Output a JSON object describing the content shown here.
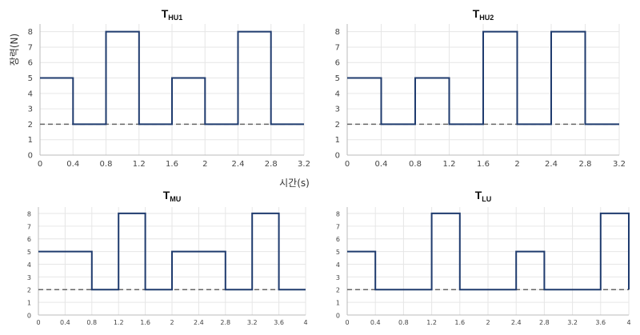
{
  "labels": {
    "y_axis": "장력(N)",
    "x_axis": "시간(s)"
  },
  "chart_data": [
    {
      "type": "line",
      "title_main": "T",
      "title_sub": "HU1",
      "x_ticks": [
        "0",
        "0.4",
        "0.8",
        "1.2",
        "1.6",
        "2",
        "2.4",
        "2.8",
        "3.2"
      ],
      "y_ticks": [
        "0",
        "1",
        "2",
        "3",
        "4",
        "5",
        "6",
        "7",
        "8"
      ],
      "xlim": [
        0,
        3.2
      ],
      "ylim": [
        0,
        8.5
      ],
      "baseline": 2,
      "step_line": {
        "x": [
          0,
          0.4,
          0.4,
          0.8,
          0.8,
          1.2,
          1.2,
          1.6,
          1.6,
          2.0,
          2.0,
          2.4,
          2.4,
          2.8,
          2.8,
          3.2
        ],
        "y": [
          5,
          5,
          2,
          2,
          8,
          8,
          2,
          2,
          5,
          5,
          2,
          2,
          8,
          8,
          2,
          2
        ]
      },
      "grid": true
    },
    {
      "type": "line",
      "title_main": "T",
      "title_sub": "HU2",
      "x_ticks": [
        "0",
        "0.4",
        "0.8",
        "1.2",
        "1.6",
        "2",
        "2.4",
        "2.8",
        "3.2"
      ],
      "y_ticks": [
        "0",
        "1",
        "2",
        "3",
        "4",
        "5",
        "6",
        "7",
        "8"
      ],
      "xlim": [
        0,
        3.2
      ],
      "ylim": [
        0,
        8.5
      ],
      "baseline": 2,
      "step_line": {
        "x": [
          0,
          0.4,
          0.4,
          0.8,
          0.8,
          1.2,
          1.2,
          1.6,
          1.6,
          2.0,
          2.0,
          2.4,
          2.4,
          2.8,
          2.8,
          3.2
        ],
        "y": [
          5,
          5,
          2,
          2,
          5,
          5,
          2,
          2,
          8,
          8,
          2,
          2,
          8,
          8,
          2,
          2
        ]
      },
      "grid": true
    },
    {
      "type": "line",
      "title_main": "T",
      "title_sub": "MU",
      "x_ticks": [
        "0",
        "0.4",
        "0.8",
        "1.2",
        "1.6",
        "2",
        "2.4",
        "2.8",
        "3.2",
        "3.6",
        "4"
      ],
      "y_ticks": [
        "0",
        "1",
        "2",
        "3",
        "4",
        "5",
        "6",
        "7",
        "8"
      ],
      "xlim": [
        0,
        4
      ],
      "ylim": [
        0,
        8.5
      ],
      "baseline": 2,
      "step_line": {
        "x": [
          0,
          0.8,
          0.8,
          1.2,
          1.2,
          1.6,
          1.6,
          2.0,
          2.0,
          2.8,
          2.8,
          3.2,
          3.2,
          3.6,
          3.6,
          4.0
        ],
        "y": [
          5,
          5,
          2,
          2,
          8,
          8,
          2,
          2,
          5,
          5,
          2,
          2,
          8,
          8,
          2,
          2
        ]
      },
      "grid": true
    },
    {
      "type": "line",
      "title_main": "T",
      "title_sub": "LU",
      "x_ticks": [
        "0",
        "0.4",
        "0.8",
        "1.2",
        "1.6",
        "2",
        "2.4",
        "2.8",
        "3.2",
        "3.6",
        "4"
      ],
      "y_ticks": [
        "0",
        "1",
        "2",
        "3",
        "4",
        "5",
        "6",
        "7",
        "8"
      ],
      "xlim": [
        0,
        4
      ],
      "ylim": [
        0,
        8.5
      ],
      "baseline": 2,
      "step_line": {
        "x": [
          0,
          0.4,
          0.4,
          1.2,
          1.2,
          1.6,
          1.6,
          2.4,
          2.4,
          2.8,
          2.8,
          3.6,
          3.6,
          4.0,
          4.0
        ],
        "y": [
          5,
          5,
          2,
          2,
          8,
          8,
          2,
          2,
          5,
          5,
          2,
          2,
          8,
          8,
          2
        ]
      },
      "grid": true
    }
  ],
  "colors": {
    "line": "#1f3b6e",
    "baseline": "#666666",
    "grid": "#e6e6e6",
    "axis": "#bbbbbb"
  }
}
